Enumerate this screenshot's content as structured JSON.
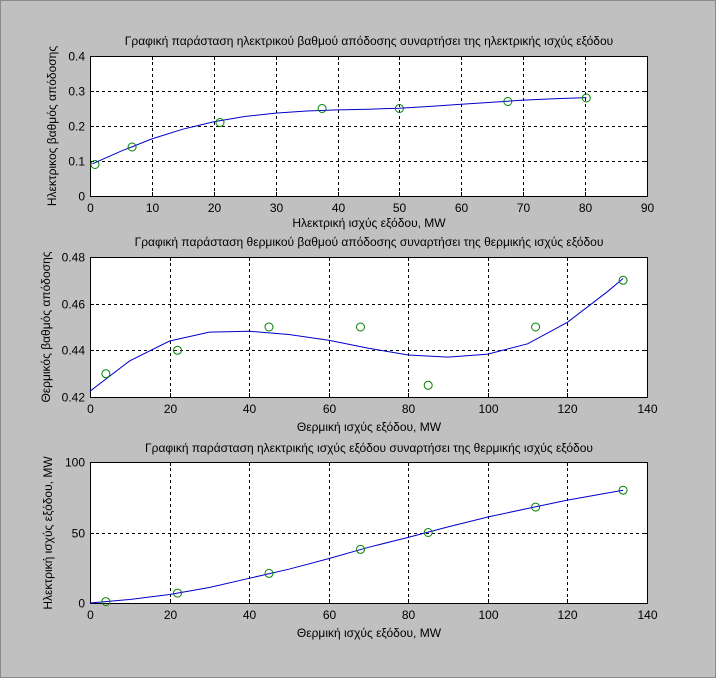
{
  "chart_data": [
    {
      "type": "scatter",
      "title": "Γραφική παράσταση ηλεκτρικού βαθμού απόδοσης συναρτήσει της ηλεκτρικής ισχύς εξόδου",
      "xlabel": "Ηλεκτρική ισχύς εξόδου, MW",
      "ylabel": "Ηλεκτρικος βαθμός απόδοσης",
      "xlim": [
        0,
        90
      ],
      "ylim": [
        0,
        0.4
      ],
      "xticks": [
        0,
        10,
        20,
        30,
        40,
        50,
        60,
        70,
        80,
        90
      ],
      "yticks": [
        0,
        0.1,
        0.2,
        0.3,
        0.4
      ],
      "xtick_labels": [
        "0",
        "10",
        "20",
        "30",
        "40",
        "50",
        "60",
        "70",
        "80",
        "90"
      ],
      "ytick_labels": [
        "0",
        "0.1",
        "0.2",
        "0.3",
        "0.4"
      ],
      "grid": true,
      "points": {
        "x": [
          0.8,
          6.8,
          21.0,
          37.5,
          50.0,
          67.5,
          80.2
        ],
        "y": [
          0.09,
          0.14,
          0.21,
          0.25,
          0.25,
          0.27,
          0.28
        ]
      },
      "fit_curve": {
        "x": [
          0.4,
          5,
          10,
          15,
          20,
          25,
          30,
          35,
          40,
          45,
          50,
          55,
          60,
          65,
          70,
          75,
          80.2
        ],
        "y": [
          0.092,
          0.128,
          0.163,
          0.191,
          0.212,
          0.227,
          0.237,
          0.243,
          0.246,
          0.248,
          0.251,
          0.256,
          0.262,
          0.268,
          0.274,
          0.278,
          0.281
        ]
      }
    },
    {
      "type": "scatter",
      "title": "Γραφική παράσταση θερμικού βαθμού απόδοσης συναρτήσει της θερμικής ισχύς εξόδου",
      "xlabel": "Θερμική ισχύς εξόδου, MW",
      "ylabel": "Θερμικός βαθμός απόδοσης",
      "xlim": [
        0,
        140
      ],
      "ylim": [
        0.42,
        0.48
      ],
      "xticks": [
        0,
        20,
        40,
        60,
        80,
        100,
        120,
        140
      ],
      "yticks": [
        0.42,
        0.44,
        0.46,
        0.48
      ],
      "xtick_labels": [
        "0",
        "20",
        "40",
        "60",
        "80",
        "100",
        "120",
        "140"
      ],
      "ytick_labels": [
        "0.42",
        "0.44",
        "0.46",
        "0.48"
      ],
      "grid": true,
      "points": {
        "x": [
          4,
          22,
          45,
          68,
          85,
          112,
          134
        ],
        "y": [
          0.43,
          0.44,
          0.45,
          0.45,
          0.425,
          0.45,
          0.47
        ]
      },
      "fit_curve": {
        "x": [
          0,
          10,
          20,
          30,
          40,
          50,
          60,
          70,
          80,
          90,
          100,
          110,
          120,
          130,
          134
        ],
        "y": [
          0.4225,
          0.4355,
          0.444,
          0.4478,
          0.4482,
          0.4468,
          0.4443,
          0.4409,
          0.438,
          0.4371,
          0.4384,
          0.4428,
          0.452,
          0.4651,
          0.4708
        ]
      }
    },
    {
      "type": "scatter",
      "title": "Γραφική παράσταση ηλεκτρικής ισχύς εξόδου συναρτήσει της θερμικής ισχύς εξόδου",
      "xlabel": "Θερμική ισχύς εξόδου, MW",
      "ylabel": "Ηλεκτρική ισχύς εξόδου, MW",
      "xlim": [
        0,
        140
      ],
      "ylim": [
        0,
        100
      ],
      "xticks": [
        0,
        20,
        40,
        60,
        80,
        100,
        120,
        140
      ],
      "yticks": [
        0,
        50,
        100
      ],
      "xtick_labels": [
        "0",
        "20",
        "40",
        "60",
        "80",
        "100",
        "120",
        "140"
      ],
      "ytick_labels": [
        "0",
        "50",
        "100"
      ],
      "grid": true,
      "points": {
        "x": [
          4,
          22,
          45,
          68,
          85,
          112,
          134
        ],
        "y": [
          1,
          7,
          21,
          38,
          50,
          68,
          80
        ]
      },
      "fit_curve": {
        "x": [
          0,
          10,
          20,
          30,
          40,
          50,
          60,
          70,
          80,
          90,
          100,
          110,
          120,
          134
        ],
        "y": [
          0,
          2.5,
          6,
          11,
          17.5,
          24,
          31.5,
          39.5,
          46.5,
          54,
          61,
          67,
          73,
          80
        ]
      }
    }
  ]
}
